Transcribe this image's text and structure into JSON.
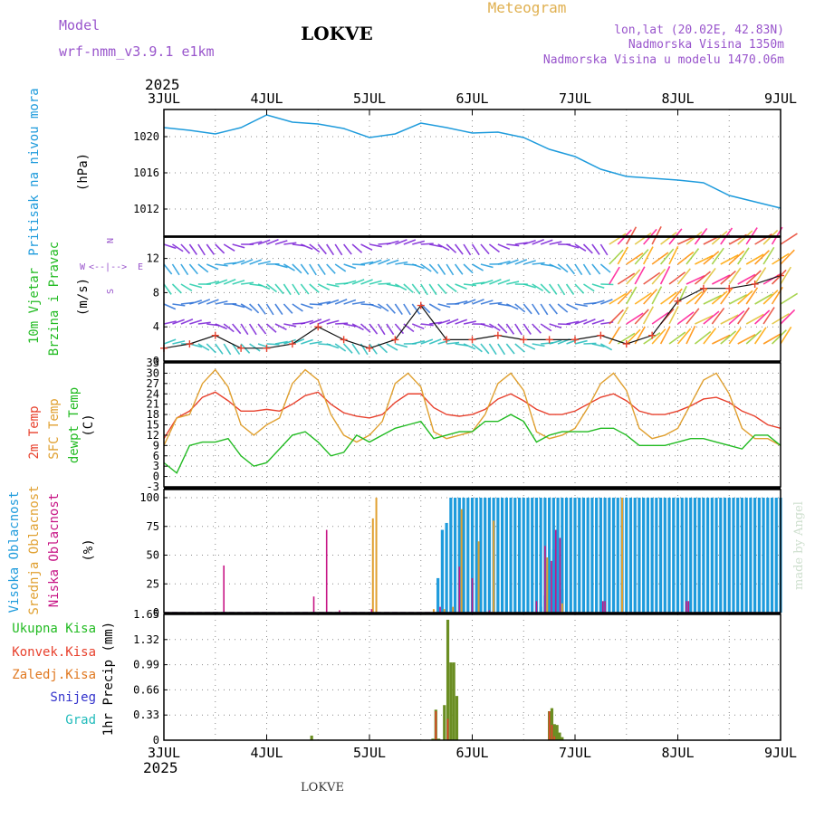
{
  "header": {
    "model_label": "Model",
    "model_value": "wrf-nmm_v3.9.1 e1km",
    "station": "LOKVE",
    "title": "Meteogram",
    "coords": "lon,lat (20.02E, 42.83N)",
    "elevation": "Nadmorska Visina 1350m",
    "model_elevation": "Nadmorska Visina u modelu 1470.06m",
    "year_top": "2025",
    "year_bottom": "2025",
    "footer_station": "LOKVE",
    "watermark": "made by Angel"
  },
  "colors": {
    "pressure": "#1e9bdc",
    "temp2m": "#e8412d",
    "sfc_temp": "#e0a030",
    "dewpt": "#22bb22",
    "high_cloud": "#1e9bdc",
    "mid_cloud": "#e0a030",
    "low_cloud": "#c71585",
    "total_precip": "#6b8e23",
    "conv_precip": "#e8412d",
    "purple_label": "#9955cc",
    "green_label": "#22bb22",
    "orange_label": "#e07820",
    "snow_label": "#3333cc",
    "hail_label": "#22bbbb"
  },
  "days": [
    "3JUL",
    "4JUL",
    "5JUL",
    "6JUL",
    "7JUL",
    "8JUL",
    "9JUL"
  ],
  "chart_data": [
    {
      "type": "line",
      "panel": "pressure",
      "ylabel_left": "Pritisak na nivou mora",
      "unit": "(hPa)",
      "y_ticks": [
        1012,
        1016,
        1020
      ],
      "ylim": [
        1009,
        1023
      ],
      "x_hours": [
        0,
        6,
        12,
        18,
        24,
        30,
        36,
        42,
        48,
        54,
        60,
        66,
        72,
        78,
        84,
        90,
        96,
        102,
        108,
        114,
        120,
        126,
        132,
        138,
        144
      ],
      "series": [
        {
          "values": [
            1021.0,
            1020.7,
            1020.3,
            1021.0,
            1022.4,
            1021.6,
            1021.4,
            1020.9,
            1019.9,
            1020.3,
            1021.5,
            1021.0,
            1020.4,
            1020.5,
            1019.9,
            1018.6,
            1017.8,
            1016.4,
            1015.6,
            1015.4,
            1015.2,
            1014.9,
            1013.5,
            1012.8,
            1012.1
          ]
        }
      ]
    },
    {
      "type": "line",
      "panel": "wind",
      "ylabel_left": [
        "10m Vjetar",
        "Brzina i Pravac"
      ],
      "unit": "(m/s)",
      "compass": [
        "N",
        "W",
        "E",
        "S"
      ],
      "y_ticks": [
        0,
        4,
        8,
        12
      ],
      "ylim": [
        0,
        14.5
      ],
      "x_hours": [
        0,
        6,
        12,
        18,
        24,
        30,
        36,
        42,
        48,
        54,
        60,
        66,
        72,
        78,
        84,
        90,
        96,
        102,
        108,
        114,
        120,
        126,
        132,
        138,
        144
      ],
      "series": [
        {
          "name": "speed",
          "values": [
            1.5,
            2.0,
            3.0,
            1.5,
            1.5,
            2.0,
            4.0,
            2.5,
            1.5,
            2.5,
            6.5,
            2.5,
            2.5,
            3.0,
            2.5,
            2.5,
            2.5,
            3.0,
            2.0,
            3.0,
            7.0,
            8.5,
            8.5,
            9.0,
            10.0
          ]
        }
      ]
    },
    {
      "type": "line",
      "panel": "temperature",
      "ylabel_left": [
        "2m Temp",
        "SFC Temp",
        "dewpt Temp"
      ],
      "unit": "(C)",
      "y_ticks": [
        -3,
        0,
        3,
        6,
        9,
        12,
        15,
        18,
        21,
        24,
        27,
        30,
        33
      ],
      "ylim": [
        -3,
        33
      ],
      "x_hours": [
        0,
        3,
        6,
        9,
        12,
        15,
        18,
        21,
        24,
        27,
        30,
        33,
        36,
        39,
        42,
        45,
        48,
        51,
        54,
        57,
        60,
        63,
        66,
        69,
        72,
        75,
        78,
        81,
        84,
        87,
        90,
        93,
        96,
        99,
        102,
        105,
        108,
        111,
        114,
        117,
        120,
        123,
        126,
        129,
        132,
        135,
        138,
        141,
        144
      ],
      "series": [
        {
          "name": "2m Temp",
          "values": [
            11,
            17,
            19,
            23,
            24.5,
            22,
            19,
            19,
            19.5,
            19,
            21,
            23.5,
            24.5,
            21,
            18.5,
            17.5,
            17,
            18,
            21.5,
            24,
            24,
            20,
            18,
            17.5,
            18,
            19.5,
            22.5,
            24,
            22,
            19.5,
            18,
            18,
            19,
            21,
            23,
            24,
            22,
            19,
            18,
            18,
            19,
            20.5,
            22.5,
            23,
            21.5,
            19,
            17.5,
            15,
            14
          ]
        },
        {
          "name": "SFC Temp",
          "values": [
            9,
            17,
            18,
            27,
            31,
            26,
            15,
            12,
            15,
            17,
            27,
            31,
            28,
            18,
            12,
            10,
            12,
            16,
            27,
            30,
            26,
            13,
            11,
            12,
            13,
            18,
            27,
            30,
            25,
            13,
            11,
            12,
            14,
            20,
            27,
            30,
            25,
            14,
            11,
            12,
            14,
            21,
            28,
            30,
            24,
            14,
            11,
            11,
            9
          ]
        },
        {
          "name": "dewpt Temp",
          "values": [
            4,
            1,
            9,
            10,
            10,
            11,
            6,
            3,
            4,
            8,
            12,
            13,
            10,
            6,
            7,
            12,
            10,
            12,
            14,
            15,
            16,
            11,
            12,
            13,
            13,
            16,
            16,
            18,
            16,
            10,
            12,
            13,
            13,
            13,
            14,
            14,
            12,
            9,
            9,
            9,
            10,
            11,
            11,
            10,
            9,
            8,
            12,
            12,
            9
          ]
        }
      ]
    },
    {
      "type": "bar",
      "panel": "clouds",
      "ylabel_left": [
        "Visoka Oblacnost",
        "Srednja Oblacnost",
        "Niska Oblacnost"
      ],
      "unit": "(%)",
      "y_ticks": [
        0,
        25,
        50,
        75,
        100
      ],
      "ylim": [
        0,
        100
      ],
      "series": [
        {
          "name": "Visoka Oblacnost",
          "points": [
            [
              64.0,
              30
            ],
            [
              65.0,
              72
            ],
            [
              66.0,
              78
            ],
            [
              67.0,
              100
            ],
            [
              68.0,
              100
            ],
            [
              69.0,
              100
            ],
            [
              70.0,
              100
            ],
            [
              71.0,
              100
            ],
            [
              72.0,
              100
            ],
            [
              73.0,
              100
            ],
            [
              74.0,
              100
            ],
            [
              75.0,
              100
            ],
            [
              76.0,
              100
            ],
            [
              77.0,
              100
            ],
            [
              78.0,
              100
            ],
            [
              79.0,
              100
            ],
            [
              80.0,
              100
            ],
            [
              81.0,
              100
            ],
            [
              82.0,
              100
            ],
            [
              83.0,
              100
            ],
            [
              84.0,
              100
            ],
            [
              85.0,
              100
            ],
            [
              86.0,
              100
            ],
            [
              87.0,
              100
            ],
            [
              88.0,
              100
            ],
            [
              89.0,
              100
            ],
            [
              90.0,
              100
            ],
            [
              91.0,
              100
            ],
            [
              92.0,
              100
            ],
            [
              93.0,
              100
            ],
            [
              94.0,
              100
            ],
            [
              95.0,
              100
            ],
            [
              96.0,
              100
            ],
            [
              97.0,
              100
            ],
            [
              98.0,
              100
            ],
            [
              99.0,
              100
            ],
            [
              100.0,
              100
            ],
            [
              101.0,
              100
            ],
            [
              102.0,
              100
            ],
            [
              103.0,
              100
            ],
            [
              104.0,
              100
            ],
            [
              105.0,
              100
            ],
            [
              106.0,
              100
            ],
            [
              107.0,
              100
            ],
            [
              108.0,
              100
            ],
            [
              109.0,
              100
            ],
            [
              110.0,
              100
            ],
            [
              111.0,
              100
            ],
            [
              112.0,
              100
            ],
            [
              113.0,
              100
            ],
            [
              114.0,
              100
            ],
            [
              115.0,
              100
            ],
            [
              116.0,
              100
            ],
            [
              117.0,
              100
            ],
            [
              118.0,
              100
            ],
            [
              119.0,
              100
            ],
            [
              120.0,
              100
            ],
            [
              121.0,
              100
            ],
            [
              122.0,
              100
            ],
            [
              123.0,
              100
            ],
            [
              124.0,
              100
            ],
            [
              125.0,
              100
            ],
            [
              126.0,
              100
            ],
            [
              127.0,
              100
            ],
            [
              128.0,
              100
            ],
            [
              129.0,
              100
            ],
            [
              130.0,
              100
            ],
            [
              131.0,
              100
            ],
            [
              132.0,
              100
            ],
            [
              133.0,
              100
            ],
            [
              134.0,
              100
            ],
            [
              135.0,
              100
            ],
            [
              136.0,
              100
            ],
            [
              137.0,
              100
            ],
            [
              138.0,
              100
            ],
            [
              139.0,
              100
            ],
            [
              140.0,
              100
            ],
            [
              141.0,
              100
            ],
            [
              142.0,
              100
            ],
            [
              143.0,
              100
            ],
            [
              144.0,
              100
            ],
            [
              88.0,
              5
            ],
            [
              89.0,
              15
            ],
            [
              90.0,
              42
            ],
            [
              91.0,
              55
            ],
            [
              92.0,
              50
            ],
            [
              93.0,
              20
            ]
          ]
        },
        {
          "name": "Srednja Oblacnost",
          "points": [
            [
              48.8,
              82
            ],
            [
              49.6,
              100
            ],
            [
              63.0,
              3
            ],
            [
              65.5,
              3
            ],
            [
              67.5,
              5
            ],
            [
              69.5,
              90
            ],
            [
              73.5,
              62
            ],
            [
              77.0,
              80
            ],
            [
              89.5,
              48
            ],
            [
              93.0,
              8
            ],
            [
              107.0,
              100
            ]
          ]
        },
        {
          "name": "Niska Oblacnost",
          "points": [
            [
              14.0,
              41
            ],
            [
              35.0,
              14
            ],
            [
              38.0,
              72
            ],
            [
              41.0,
              2
            ],
            [
              48.5,
              3
            ],
            [
              64.5,
              5
            ],
            [
              69.0,
              40
            ],
            [
              72.0,
              30
            ],
            [
              76.0,
              2
            ],
            [
              87.0,
              10
            ],
            [
              89.0,
              58
            ],
            [
              90.5,
              45
            ],
            [
              91.5,
              72
            ],
            [
              92.5,
              65
            ],
            [
              102.5,
              10
            ],
            [
              103.0,
              10
            ],
            [
              122.0,
              10
            ],
            [
              122.5,
              10
            ]
          ]
        }
      ]
    },
    {
      "type": "bar",
      "panel": "precipitation",
      "ylabel_left": [
        "Ukupna Kisa",
        "Konvek.Kisa",
        "Zaledj.Kisa",
        "Snijeg",
        "Grad"
      ],
      "unit": "1hr Precip (mm)",
      "y_ticks": [
        0,
        0.33,
        0.66,
        0.99,
        1.32,
        1.65
      ],
      "ylim": [
        0,
        1.65
      ],
      "series": [
        {
          "name": "Ukupna Kisa",
          "points": [
            [
              34.5,
              0.06
            ],
            [
              62.8,
              0.02
            ],
            [
              63.5,
              0.4
            ],
            [
              64.2,
              0.02
            ],
            [
              65.5,
              0.46
            ],
            [
              66.3,
              1.58
            ],
            [
              67.0,
              1.02
            ],
            [
              67.7,
              1.02
            ],
            [
              68.4,
              0.58
            ],
            [
              90.0,
              0.38
            ],
            [
              90.6,
              0.42
            ],
            [
              91.2,
              0.21
            ],
            [
              91.8,
              0.2
            ],
            [
              92.4,
              0.1
            ],
            [
              93.0,
              0.04
            ]
          ]
        },
        {
          "name": "Konvek.Kisa",
          "points": [
            [
              63.5,
              0.38
            ],
            [
              66.3,
              0.28
            ],
            [
              90.0,
              0.38
            ],
            [
              90.6,
              0.2
            ],
            [
              91.2,
              0.05
            ]
          ]
        }
      ]
    }
  ]
}
